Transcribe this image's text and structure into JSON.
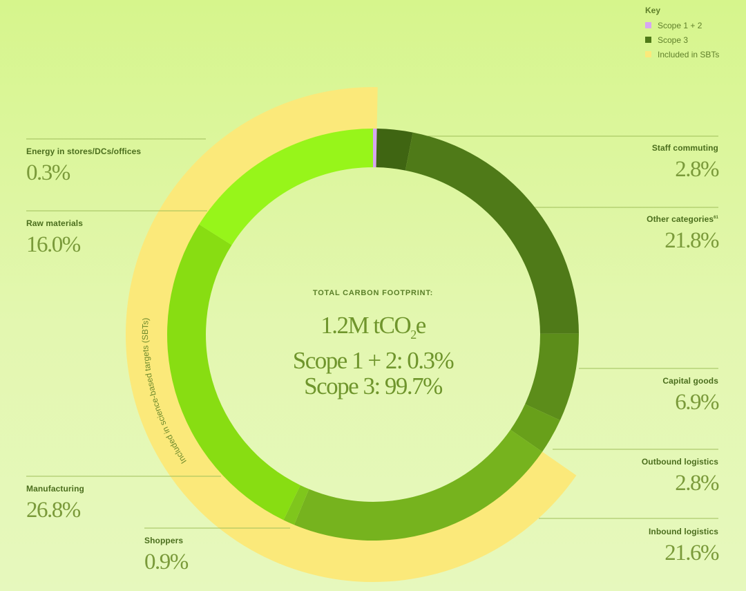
{
  "chart_data": {
    "type": "donut",
    "title": "TOTAL CARBON FOOTPRINT:",
    "center": {
      "total_prefix": "1.2M tCO",
      "total_sub": "2",
      "total_suffix": "e",
      "line2": "Scope 1 + 2: 0.3%",
      "line3": "Scope 3: 99.7%"
    },
    "segments": [
      {
        "name": "Energy in stores/DCs/offices",
        "value": 0.3,
        "label": "0.3%",
        "scope": "Scope 1 + 2",
        "color": "#d7a6f2"
      },
      {
        "name": "Staff commuting",
        "value": 2.8,
        "label": "2.8%",
        "scope": "Scope 3",
        "color": "#3f6512"
      },
      {
        "name": "Other categories",
        "name_sup": "61",
        "value": 21.8,
        "label": "21.8%",
        "scope": "Scope 3",
        "color": "#4f7a18"
      },
      {
        "name": "Capital goods",
        "value": 6.9,
        "label": "6.9%",
        "scope": "Scope 3",
        "color": "#5c8d1a"
      },
      {
        "name": "Outbound logistics",
        "value": 2.8,
        "label": "2.8%",
        "scope": "Scope 3",
        "color": "#68a01a"
      },
      {
        "name": "Inbound logistics",
        "value": 21.6,
        "label": "21.6%",
        "scope": "Scope 3",
        "color": "#76b31e"
      },
      {
        "name": "Shoppers",
        "value": 0.9,
        "label": "0.9%",
        "scope": "Scope 3",
        "color": "#7fc61c"
      },
      {
        "name": "Manufacturing",
        "value": 26.8,
        "label": "26.8%",
        "scope": "Scope 3",
        "color": "#88dd12"
      },
      {
        "name": "Raw materials",
        "value": 16.0,
        "label": "16.0%",
        "scope": "Scope 3",
        "color": "#97f51a"
      }
    ],
    "sbt_band": {
      "label": "Included in science-based targets (SBTs)",
      "covers": [
        "Inbound logistics",
        "Shoppers",
        "Manufacturing",
        "Raw materials",
        "Energy in stores/DCs/offices"
      ],
      "color": "#fbe97a"
    },
    "legend": {
      "title": "Key",
      "position": "top-right",
      "items": [
        {
          "label": "Scope 1 + 2",
          "color": "#d7a6f2"
        },
        {
          "label": "Scope 3",
          "color": "#4f7a18"
        },
        {
          "label": "Included in SBTs",
          "color": "#fbe97a"
        }
      ]
    }
  }
}
